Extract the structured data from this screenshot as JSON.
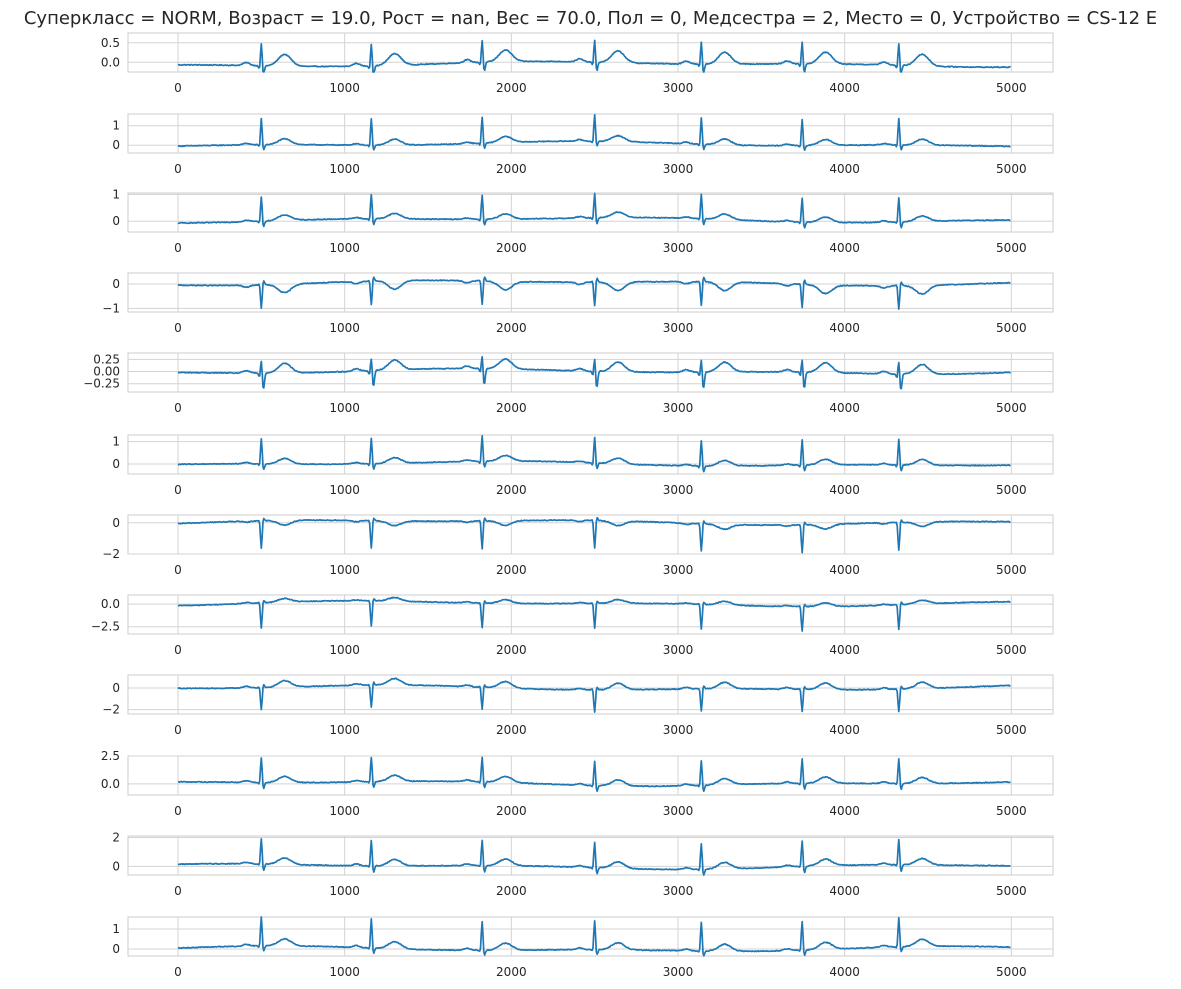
{
  "title": "Суперкласс = NORM, Возраст = 19.0, Рост = nan, Вес = 70.0, Пол = 0, Медсестра = 2, Место = 0, Устройство = CS-12   E",
  "colors": {
    "line": "#1f77b4",
    "grid": "#d3d3d3",
    "axes": "#cccccc",
    "text": "#262626"
  },
  "chart_data": {
    "type": "line",
    "title": "Суперкласс = NORM, Возраст = 19.0, Рост = nan, Вес = 70.0, Пол = 0, Медсестра = 2, Место = 0, Устройство = CS-12   E",
    "xlim": [
      -300,
      5250
    ],
    "x_ticks": [
      0,
      1000,
      2000,
      3000,
      4000,
      5000
    ],
    "x_tick_labels": [
      "0",
      "1000",
      "2000",
      "3000",
      "4000",
      "5000"
    ],
    "n_samples": 5000,
    "grid": true,
    "beats": [
      500,
      1160,
      1825,
      2500,
      3140,
      3745,
      4325
    ],
    "series": [
      {
        "ylim": [
          -0.25,
          0.75
        ],
        "y_ticks": [
          0.0,
          0.5
        ],
        "y_tick_labels": [
          "0.0",
          "0.5"
        ],
        "qrs_peak": 0.6,
        "q": -0.1,
        "s": -0.25,
        "t": 0.3,
        "baseline": -0.05
      },
      {
        "ylim": [
          -0.4,
          1.6
        ],
        "y_ticks": [
          0,
          1
        ],
        "y_tick_labels": [
          "0",
          "1"
        ],
        "qrs_peak": 1.4,
        "q": -0.15,
        "s": -0.3,
        "t": 0.3,
        "baseline": 0.05
      },
      {
        "ylim": [
          -0.4,
          1.05
        ],
        "y_ticks": [
          0,
          1
        ],
        "y_tick_labels": [
          "0",
          "1"
        ],
        "qrs_peak": 0.95,
        "q": -0.1,
        "s": -0.25,
        "t": 0.2,
        "baseline": 0.05
      },
      {
        "ylim": [
          -1.15,
          0.45
        ],
        "y_ticks": [
          -1,
          0
        ],
        "y_tick_labels": [
          "−1",
          "0"
        ],
        "qrs_peak": -1.0,
        "q": 0.05,
        "s": 0.2,
        "t": -0.35,
        "baseline": 0.05
      },
      {
        "ylim": [
          -0.42,
          0.38
        ],
        "y_ticks": [
          -0.25,
          0.0,
          0.25
        ],
        "y_tick_labels": [
          "−0.25",
          "0.00",
          "0.25"
        ],
        "qrs_peak": 0.3,
        "q": -0.1,
        "s": -0.35,
        "t": 0.2,
        "baseline": 0.0
      },
      {
        "ylim": [
          -0.45,
          1.3
        ],
        "y_ticks": [
          0,
          1
        ],
        "y_tick_labels": [
          "0",
          "1"
        ],
        "qrs_peak": 1.2,
        "q": -0.15,
        "s": -0.3,
        "t": 0.25,
        "baseline": 0.0
      },
      {
        "ylim": [
          -2.0,
          0.5
        ],
        "y_ticks": [
          -2,
          0
        ],
        "y_tick_labels": [
          "−2",
          "0"
        ],
        "qrs_peak": -1.8,
        "q": 0.05,
        "s": 0.2,
        "t": -0.3,
        "baseline": 0.05
      },
      {
        "ylim": [
          -3.3,
          1.0
        ],
        "y_ticks": [
          -2.5,
          0.0
        ],
        "y_tick_labels": [
          "−2.5",
          "0.0"
        ],
        "qrs_peak": -2.8,
        "q": 0.1,
        "s": 0.3,
        "t": 0.4,
        "baseline": 0.05
      },
      {
        "ylim": [
          -2.4,
          1.2
        ],
        "y_ticks": [
          -2,
          0
        ],
        "y_tick_labels": [
          "−2",
          "0"
        ],
        "qrs_peak": -2.1,
        "q": 0.1,
        "s": 0.3,
        "t": 0.6,
        "baseline": 0.0
      },
      {
        "ylim": [
          -1.0,
          2.5
        ],
        "y_ticks": [
          0.0,
          2.5
        ],
        "y_tick_labels": [
          "0.0",
          "2.5"
        ],
        "qrs_peak": 2.3,
        "q": -0.2,
        "s": -0.6,
        "t": 0.55,
        "baseline": 0.05
      },
      {
        "ylim": [
          -0.6,
          2.1
        ],
        "y_ticks": [
          0,
          2
        ],
        "y_tick_labels": [
          "0",
          "2"
        ],
        "qrs_peak": 1.85,
        "q": -0.15,
        "s": -0.5,
        "t": 0.45,
        "baseline": 0.0
      },
      {
        "ylim": [
          -0.35,
          1.6
        ],
        "y_ticks": [
          0,
          1
        ],
        "y_tick_labels": [
          "0",
          "1"
        ],
        "qrs_peak": 1.5,
        "q": -0.1,
        "s": -0.3,
        "t": 0.35,
        "baseline": 0.0
      }
    ]
  }
}
